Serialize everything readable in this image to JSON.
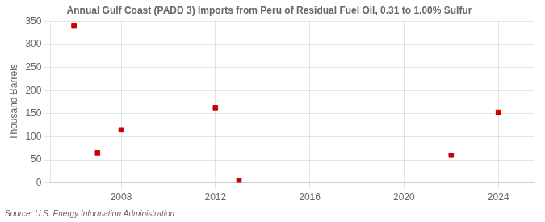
{
  "chart_data": {
    "type": "scatter",
    "title": "Annual Gulf Coast (PADD 3) Imports from Peru of Residual Fuel Oil, 0.31 to 1.00% Sulfur",
    "ylabel": "Thousand Barrels",
    "source": "Source: U.S. Energy Information Administration",
    "x": [
      2006,
      2007,
      2008,
      2012,
      2013,
      2022,
      2024
    ],
    "values": [
      340,
      65,
      115,
      163,
      5,
      60,
      153
    ],
    "color": "#cc0000",
    "marker": "square",
    "xlim": [
      2005.0,
      2025.5
    ],
    "ylim": [
      0,
      350
    ],
    "xticks": [
      2008,
      2012,
      2016,
      2020,
      2024
    ],
    "yticks": [
      0,
      50,
      100,
      150,
      200,
      250,
      300,
      350
    ],
    "grid": true
  }
}
